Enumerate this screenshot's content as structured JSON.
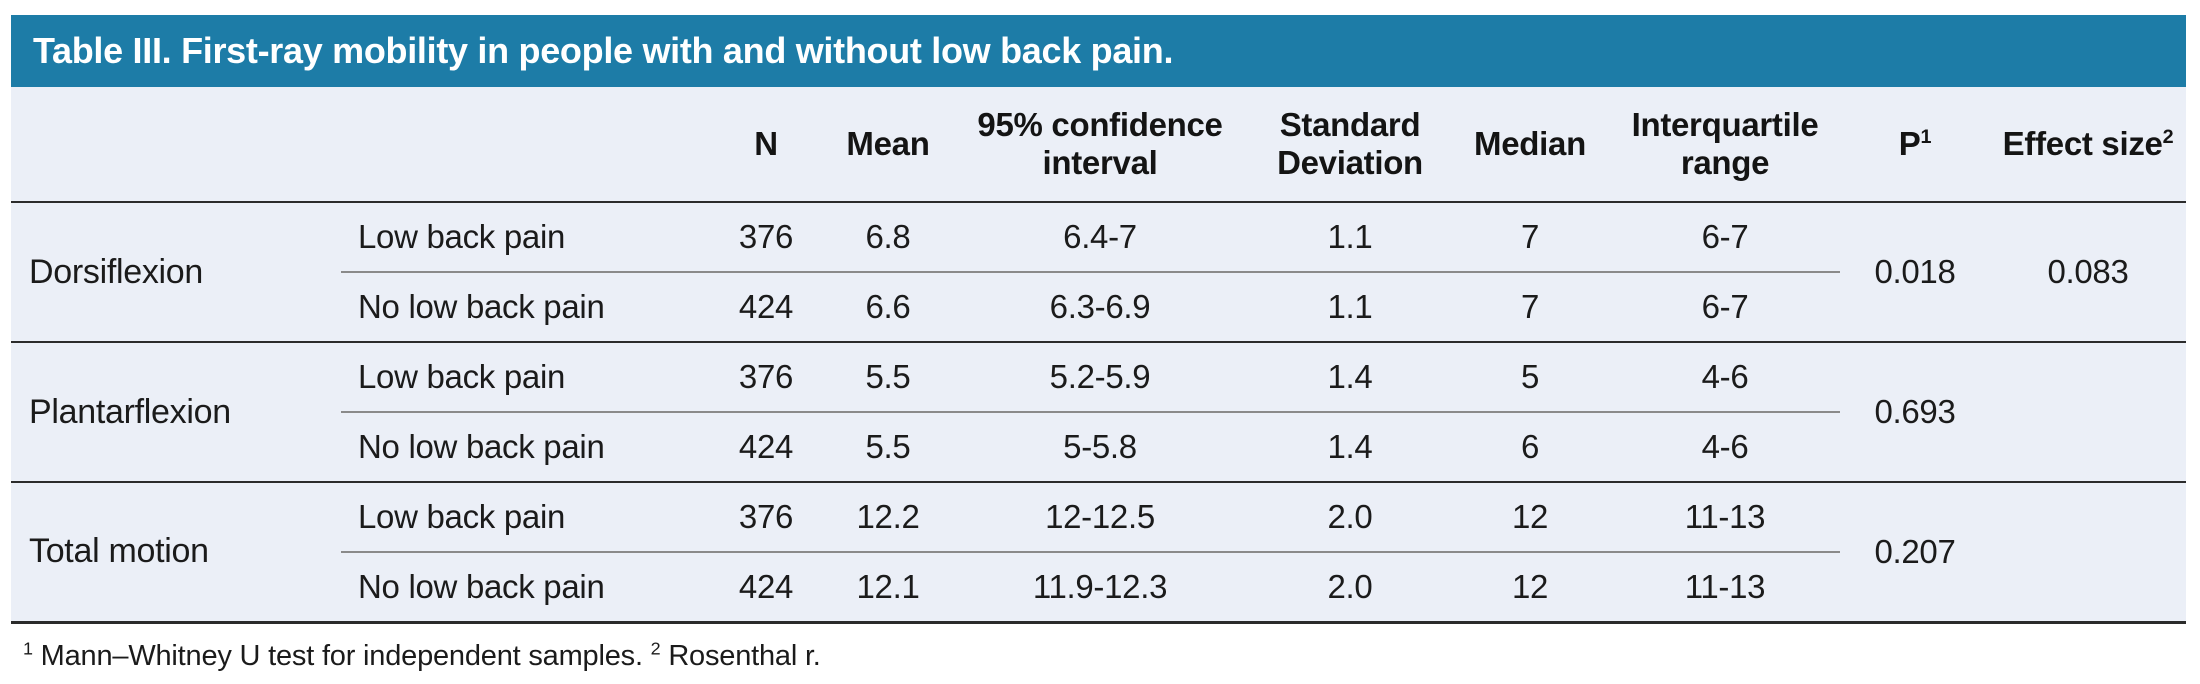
{
  "table": {
    "title": "Table III. First-ray mobility in people with and without low back pain.",
    "columns": [
      {
        "label": "N",
        "sup": ""
      },
      {
        "label": "Mean",
        "sup": ""
      },
      {
        "label": "95% confidence interval",
        "sup": ""
      },
      {
        "label": "Standard Deviation",
        "sup": ""
      },
      {
        "label": "Median",
        "sup": ""
      },
      {
        "label": "Interquartile range",
        "sup": ""
      },
      {
        "label": "P",
        "sup": "1"
      },
      {
        "label": "Effect size",
        "sup": "2"
      }
    ],
    "groups": [
      {
        "name": "Dorsiflexion",
        "p": "0.018",
        "effect_size": "0.083",
        "rows": [
          {
            "condition": "Low back pain",
            "n": "376",
            "mean": "6.8",
            "ci": "6.4-7",
            "sd": "1.1",
            "median": "7",
            "iqr": "6-7"
          },
          {
            "condition": "No low back pain",
            "n": "424",
            "mean": "6.6",
            "ci": "6.3-6.9",
            "sd": "1.1",
            "median": "7",
            "iqr": "6-7"
          }
        ]
      },
      {
        "name": "Plantarflexion",
        "p": "0.693",
        "effect_size": "",
        "rows": [
          {
            "condition": "Low back pain",
            "n": "376",
            "mean": "5.5",
            "ci": "5.2-5.9",
            "sd": "1.4",
            "median": "5",
            "iqr": "4-6"
          },
          {
            "condition": "No low back pain",
            "n": "424",
            "mean": "5.5",
            "ci": "5-5.8",
            "sd": "1.4",
            "median": "6",
            "iqr": "4-6"
          }
        ]
      },
      {
        "name": "Total motion",
        "p": "0.207",
        "effect_size": "",
        "rows": [
          {
            "condition": "Low back pain",
            "n": "376",
            "mean": "12.2",
            "ci": "12-12.5",
            "sd": "2.0",
            "median": "12",
            "iqr": "11-13"
          },
          {
            "condition": "No low back pain",
            "n": "424",
            "mean": "12.1",
            "ci": "11.9-12.3",
            "sd": "2.0",
            "median": "12",
            "iqr": "11-13"
          }
        ]
      }
    ],
    "footnote": {
      "marker1": "1",
      "note1": "Mann–Whitney U test for independent samples.",
      "marker2": "2",
      "note2": "Rosenthal r."
    }
  }
}
